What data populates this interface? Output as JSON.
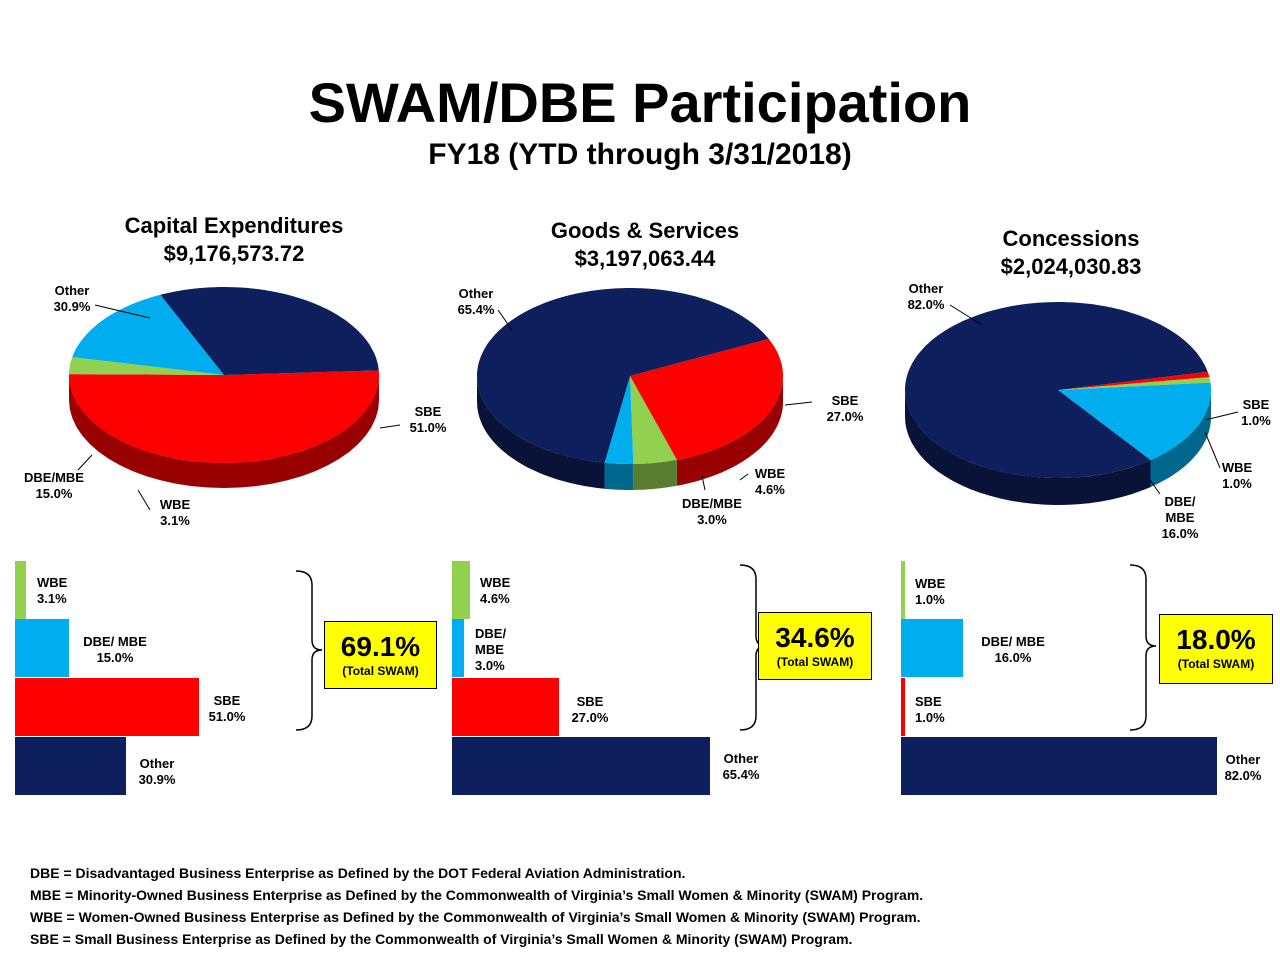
{
  "title": "SWAM/DBE Participation",
  "subtitle": "FY18 (YTD through 3/31/2018)",
  "colors": {
    "navy": "#0d1f5c",
    "red": "#ff0000",
    "cyan": "#00aeef",
    "green": "#92d050",
    "yellow": "#ffff00"
  },
  "charts": [
    {
      "title": "Capital Expenditures",
      "amount": "$9,176,573.72",
      "labels": {
        "other": "Other\n30.9%",
        "sbe": "SBE\n51.0%",
        "dbe": "DBE/MBE\n15.0%",
        "wbe": "WBE\n3.1%"
      },
      "bars": {
        "wbe": "WBE\n3.1%",
        "dbe": "DBE/ MBE\n15.0%",
        "sbe": "SBE\n51.0%",
        "other": "Other\n30.9%"
      },
      "total": {
        "value": "69.1%",
        "label": "(Total SWAM)"
      }
    },
    {
      "title": "Goods & Services",
      "amount": "$3,197,063.44",
      "labels": {
        "other": "Other\n65.4%",
        "sbe": "SBE\n27.0%",
        "wbe": "WBE\n4.6%",
        "dbe": "DBE/MBE\n3.0%"
      },
      "bars": {
        "wbe": "WBE\n4.6%",
        "dbe": "DBE/\nMBE\n3.0%",
        "sbe": "SBE\n27.0%",
        "other": "Other\n65.4%"
      },
      "total": {
        "value": "34.6%",
        "label": "(Total SWAM)"
      }
    },
    {
      "title": "Concessions",
      "amount": "$2,024,030.83",
      "labels": {
        "other": "Other\n82.0%",
        "sbe": "SBE\n1.0%",
        "wbe": "WBE\n1.0%",
        "dbe": "DBE/\nMBE\n16.0%"
      },
      "bars": {
        "wbe": "WBE\n1.0%",
        "dbe": "DBE/ MBE\n16.0%",
        "sbe": "SBE\n1.0%",
        "other": "Other\n82.0%"
      },
      "total": {
        "value": "18.0%",
        "label": "(Total SWAM)"
      }
    }
  ],
  "chart_data": [
    {
      "type": "pie",
      "title": "Capital Expenditures",
      "subtitle": "$9,176,573.72",
      "categories": [
        "SBE",
        "WBE",
        "DBE/MBE",
        "Other"
      ],
      "values": [
        51.0,
        3.1,
        15.0,
        30.9
      ]
    },
    {
      "type": "pie",
      "title": "Goods & Services",
      "subtitle": "$3,197,063.44",
      "categories": [
        "SBE",
        "WBE",
        "DBE/MBE",
        "Other"
      ],
      "values": [
        27.0,
        4.6,
        3.0,
        65.4
      ]
    },
    {
      "type": "pie",
      "title": "Concessions",
      "subtitle": "$2,024,030.83",
      "categories": [
        "SBE",
        "WBE",
        "DBE/MBE",
        "Other"
      ],
      "values": [
        1.0,
        1.0,
        16.0,
        82.0
      ]
    },
    {
      "type": "bar",
      "categories": [
        "WBE",
        "DBE/MBE",
        "SBE",
        "Other"
      ],
      "values": [
        3.1,
        15.0,
        51.0,
        30.9
      ]
    },
    {
      "type": "bar",
      "categories": [
        "WBE",
        "DBE/MBE",
        "SBE",
        "Other"
      ],
      "values": [
        4.6,
        3.0,
        27.0,
        65.4
      ]
    },
    {
      "type": "bar",
      "categories": [
        "WBE",
        "DBE/MBE",
        "SBE",
        "Other"
      ],
      "values": [
        1.0,
        16.0,
        1.0,
        82.0
      ]
    }
  ],
  "footnotes": [
    "DBE = Disadvantaged Business Enterprise as Defined by the DOT Federal Aviation Administration.",
    "MBE = Minority-Owned Business Enterprise as Defined by the Commonwealth of Virginia’s Small Women & Minority (SWAM) Program.",
    "WBE = Women-Owned Business Enterprise as Defined by the Commonwealth of Virginia’s Small Women & Minority (SWAM) Program.",
    "SBE = Small Business Enterprise as Defined by the Commonwealth of Virginia’s Small Women & Minority (SWAM) Program."
  ]
}
